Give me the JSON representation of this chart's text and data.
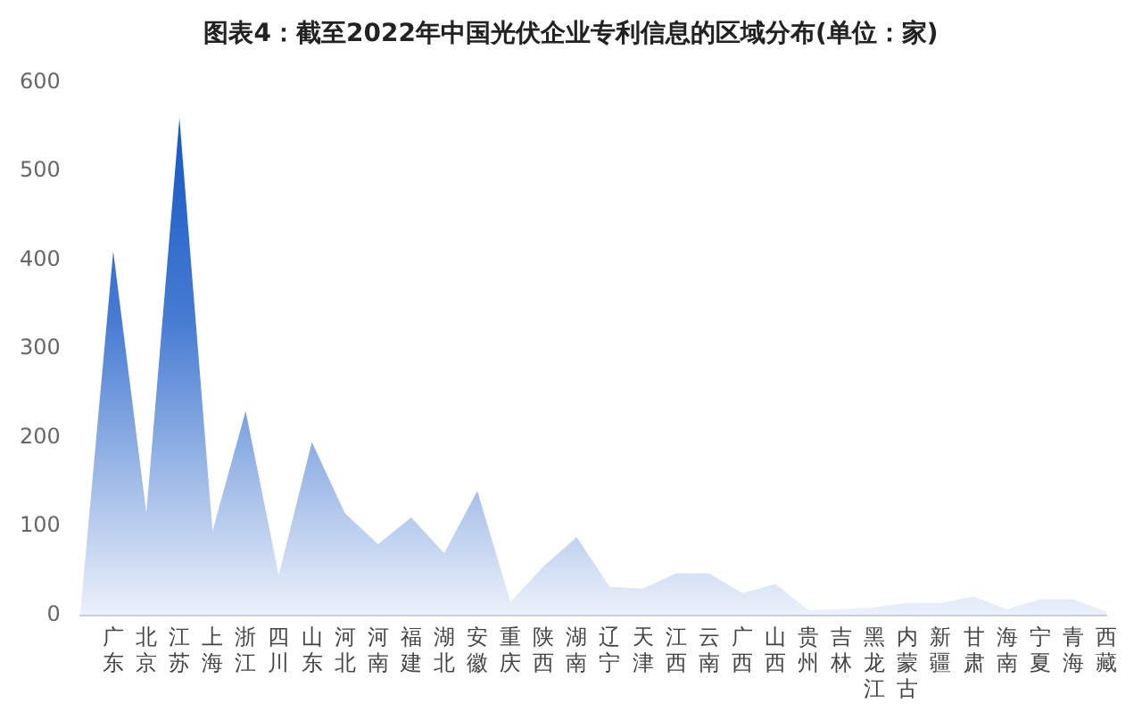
{
  "chart_data": {
    "type": "area",
    "title": "图表4：截至2022年中国光伏企业专利信息的区域分布(单位：家)",
    "categories": [
      null,
      "广东",
      "北京",
      "江苏",
      "上海",
      "浙江",
      "四川",
      "山东",
      "河北",
      "河南",
      "福建",
      "湖北",
      "安徽",
      "重庆",
      "陕西",
      "湖南",
      "辽宁",
      "天津",
      "江西",
      "云南",
      "广西",
      "山西",
      "贵州",
      "吉林",
      "黑龙江",
      "内蒙古",
      "新疆",
      "甘肃",
      "海南",
      "宁夏",
      "青海",
      "西藏"
    ],
    "series": [
      {
        "color": "#0b50c3",
        "values": [
          0,
          410,
          115,
          560,
          95,
          230,
          45,
          195,
          115,
          80,
          110,
          70,
          140,
          15,
          55,
          88,
          32,
          30,
          47,
          47,
          25,
          35,
          6,
          7,
          9,
          14,
          14,
          21,
          7,
          18,
          18,
          4
        ]
      }
    ],
    "ylim": [
      0,
      600
    ],
    "yticks": [
      0,
      100,
      200,
      300,
      400,
      500,
      600
    ],
    "grid": false,
    "legend": false
  }
}
